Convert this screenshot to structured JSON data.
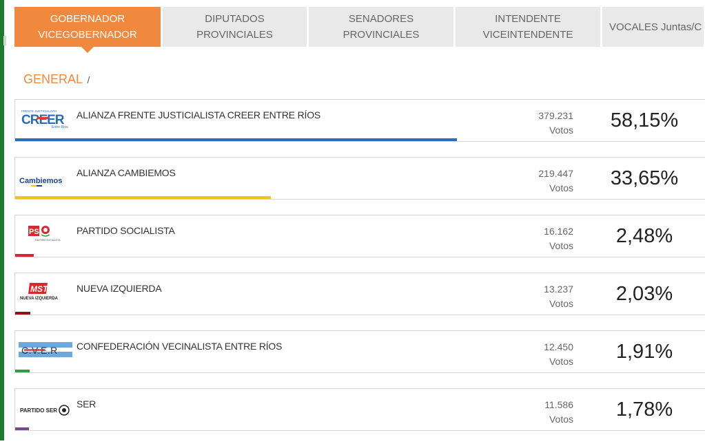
{
  "tabs": [
    {
      "line1": "GOBERNADOR",
      "line2": "VICEGOBERNADOR",
      "active": true
    },
    {
      "line1": "DIPUTADOS",
      "line2": "PROVINCIALES",
      "active": false
    },
    {
      "line1": "SENADORES",
      "line2": "PROVINCIALES",
      "active": false
    },
    {
      "line1": "INTENDENTE",
      "line2": "VICEINTENDENTE",
      "active": false
    },
    {
      "line1": "VOCALES Juntas/C",
      "line2": "",
      "active": false
    }
  ],
  "breadcrumb": {
    "current": "GENERAL",
    "separator": "/"
  },
  "votes_label": "Votos",
  "parties": [
    {
      "name": "ALIANZA FRENTE JUSTICIALISTA CREER ENTRE RÍOS",
      "votes": "379.231",
      "percent": "58,15%",
      "share": 0.5815,
      "color": "#2a6db5",
      "logo": "creer-logo",
      "logo_text": "CREER",
      "logo_sub": "FRENTE JUSTICIALISTA",
      "logo_sub2": "Entre Ríos"
    },
    {
      "name": "ALIANZA CAMBIEMOS",
      "votes": "219.447",
      "percent": "33,65%",
      "share": 0.3365,
      "color": "#f2c318",
      "logo": "cambiemos-logo",
      "logo_text": "Cambiemos"
    },
    {
      "name": "PARTIDO SOCIALISTA",
      "votes": "16.162",
      "percent": "2,48%",
      "share": 0.0248,
      "color": "#d6282e",
      "logo": "ps-logo",
      "logo_text": "PS",
      "logo_sub": "PARTIDO SOCIALISTA"
    },
    {
      "name": "NUEVA IZQUIERDA",
      "votes": "13.237",
      "percent": "2,03%",
      "share": 0.0203,
      "color": "#8b1418",
      "logo": "mst-logo",
      "logo_text": "MST",
      "logo_sub": "NUEVA IZQUIERDA"
    },
    {
      "name": "CONFEDERACIÓN VECINALISTA ENTRE RÍOS",
      "votes": "12.450",
      "percent": "1,91%",
      "share": 0.0191,
      "color": "#2e9e3e",
      "logo": "cver-logo",
      "logo_text": "C.V.E.R"
    },
    {
      "name": "SER",
      "votes": "11.586",
      "percent": "1,78%",
      "share": 0.0178,
      "color": "#7a4b8c",
      "logo": "ser-logo",
      "logo_text": "PARTIDO SER"
    }
  ]
}
